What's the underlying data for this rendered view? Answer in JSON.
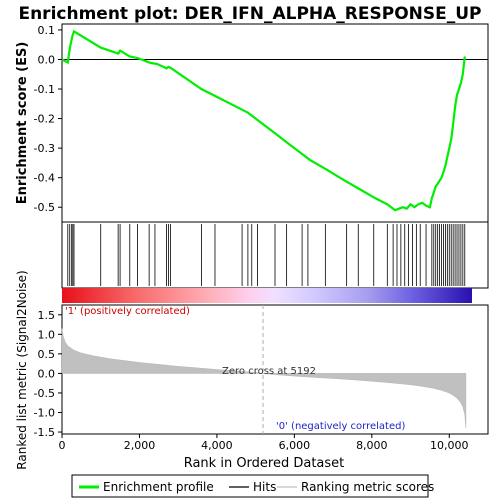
{
  "title": "Enrichment plot: DER_IFN_ALPHA_RESPONSE_UP",
  "colors": {
    "profile": "#00ee00",
    "hits": "#000000",
    "metric_fill": "#c0c0c0",
    "zero_cross": "#b0b0b0",
    "pos_label": "#cc0000",
    "neg_label": "#2222cc"
  },
  "legend": {
    "enrichment_profile": "Enrichment profile",
    "hits": "Hits",
    "ranking_metric_scores": "Ranking metric scores"
  },
  "labels": {
    "positively_correlated": "'1' (positively correlated)",
    "negatively_correlated": "'0' (negatively correlated)",
    "zero_cross": "Zero cross at 5192"
  },
  "chart_data": [
    {
      "type": "line",
      "name": "enrichment-score",
      "ylabel": "Enrichment score (ES)",
      "ylim": [
        -0.55,
        0.12
      ],
      "xlim": [
        0,
        11000
      ],
      "yticks": [
        0.1,
        0.0,
        -0.1,
        -0.2,
        -0.3,
        -0.4,
        -0.5
      ],
      "ytick_labels": [
        "0.1",
        "0.0",
        "-0.1",
        "-0.2",
        "-0.3",
        "-0.4",
        "-0.5"
      ],
      "zero_line": true,
      "x": [
        0,
        150,
        180,
        220,
        270,
        310,
        1000,
        1450,
        1500,
        1750,
        1950,
        2250,
        2300,
        2450,
        2700,
        2750,
        2800,
        3600,
        3900,
        4650,
        4800,
        4900,
        5100,
        5500,
        5800,
        6200,
        6400,
        6800,
        7300,
        7700,
        8100,
        8400,
        8600,
        8700,
        8800,
        8900,
        9000,
        9100,
        9200,
        9300,
        9400,
        9500,
        9550,
        9600,
        9650,
        9700,
        9750,
        9800,
        9850,
        9900,
        9950,
        10000,
        10050,
        10100,
        10150,
        10200,
        10250,
        10300,
        10350,
        10400
      ],
      "values": [
        0.0,
        -0.01,
        0.02,
        0.05,
        0.08,
        0.095,
        0.04,
        0.02,
        0.03,
        0.01,
        0.005,
        -0.01,
        -0.012,
        -0.015,
        -0.03,
        -0.025,
        -0.028,
        -0.1,
        -0.12,
        -0.17,
        -0.18,
        -0.19,
        -0.21,
        -0.25,
        -0.28,
        -0.32,
        -0.34,
        -0.37,
        -0.41,
        -0.44,
        -0.47,
        -0.49,
        -0.51,
        -0.505,
        -0.5,
        -0.505,
        -0.49,
        -0.5,
        -0.49,
        -0.485,
        -0.495,
        -0.5,
        -0.47,
        -0.45,
        -0.43,
        -0.42,
        -0.41,
        -0.4,
        -0.38,
        -0.36,
        -0.33,
        -0.3,
        -0.27,
        -0.22,
        -0.16,
        -0.12,
        -0.1,
        -0.08,
        -0.05,
        0.01
      ]
    },
    {
      "type": "hits",
      "name": "hit-positions",
      "xlim": [
        0,
        11000
      ],
      "x": [
        150,
        200,
        250,
        280,
        310,
        1000,
        1450,
        1500,
        1750,
        1950,
        2250,
        2400,
        2700,
        2750,
        2800,
        3600,
        3950,
        4650,
        4800,
        4900,
        5050,
        5500,
        5800,
        6200,
        6350,
        6800,
        7350,
        7650,
        8050,
        8400,
        8550,
        8650,
        8750,
        8850,
        8950,
        9050,
        9150,
        9250,
        9400,
        9550,
        9600,
        9650,
        9700,
        9750,
        9800,
        9850,
        9900,
        9950,
        10000,
        10050,
        10100,
        10150,
        10200,
        10250,
        10300,
        10350,
        10400
      ]
    },
    {
      "type": "area",
      "name": "ranked-list-metric",
      "ylabel": "Ranked list metric (Signal2Noise)",
      "xlabel": "Rank in Ordered Dataset",
      "ylim": [
        -1.55,
        1.75
      ],
      "xlim": [
        0,
        11000
      ],
      "yticks": [
        1.5,
        1.0,
        0.5,
        0.0,
        -0.5,
        -1.0,
        -1.5
      ],
      "ytick_labels": [
        "1.5",
        "1.0",
        "0.5",
        "0.0",
        "-0.5",
        "-1.0",
        "-1.5"
      ],
      "xticks": [
        0,
        2000,
        4000,
        6000,
        8000,
        10000
      ],
      "xtick_labels": [
        "0",
        "2,000",
        "4,000",
        "6,000",
        "8,000",
        "10,000"
      ],
      "x": [
        0,
        30,
        80,
        150,
        300,
        500,
        800,
        1200,
        1600,
        2000,
        2500,
        3000,
        3500,
        4000,
        4500,
        5000,
        5192,
        5500,
        6000,
        6500,
        7000,
        7500,
        8000,
        8500,
        9000,
        9300,
        9600,
        9800,
        10000,
        10100,
        10200,
        10300,
        10350,
        10400,
        10430
      ],
      "values": [
        1.15,
        0.95,
        0.8,
        0.7,
        0.6,
        0.52,
        0.45,
        0.38,
        0.33,
        0.28,
        0.23,
        0.18,
        0.14,
        0.1,
        0.06,
        0.02,
        0.0,
        -0.03,
        -0.07,
        -0.1,
        -0.13,
        -0.16,
        -0.2,
        -0.24,
        -0.29,
        -0.33,
        -0.38,
        -0.43,
        -0.5,
        -0.56,
        -0.63,
        -0.75,
        -0.85,
        -1.05,
        -1.4
      ]
    }
  ]
}
